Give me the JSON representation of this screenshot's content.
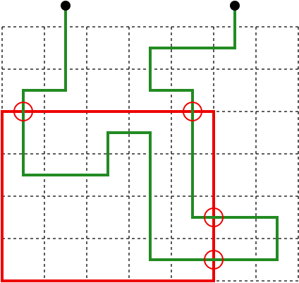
{
  "colors": {
    "background": "#ffffff",
    "grid_line": "#000000",
    "path_line": "#228b22",
    "region_border": "#ee0000",
    "intersection_marker": "#ee0000",
    "endpoint_dot": "#000000"
  },
  "grid": {
    "columns": 7,
    "rows": 6,
    "line_style": "dashed"
  },
  "paths": [
    {
      "name": "left-path",
      "start_endpoint": "left-start-dot",
      "nodes": [
        [
          1.5,
          -0.5
        ],
        [
          1.5,
          1.5
        ],
        [
          0.5,
          1.5
        ],
        [
          0.5,
          3.5
        ],
        [
          2.5,
          3.5
        ],
        [
          2.5,
          2.5
        ],
        [
          3.5,
          2.5
        ],
        [
          3.5,
          5.5
        ],
        [
          6.5,
          5.5
        ],
        [
          6.5,
          4.5
        ],
        [
          4.5,
          4.5
        ],
        [
          4.5,
          1.5
        ],
        [
          3.5,
          1.5
        ],
        [
          3.5,
          0.5
        ],
        [
          5.5,
          0.5
        ],
        [
          5.5,
          -0.5
        ]
      ]
    }
  ],
  "endpoints": [
    {
      "name": "left-start-dot",
      "cell": [
        1.5,
        -0.5
      ]
    },
    {
      "name": "right-start-dot",
      "cell": [
        5.5,
        -0.5
      ]
    }
  ],
  "region": {
    "name": "red-region-border",
    "cells_from": [
      0,
      2
    ],
    "cells_to": [
      5,
      6
    ]
  },
  "intersections": [
    {
      "name": "crossing-marker-top-left",
      "cell": [
        0.5,
        2
      ]
    },
    {
      "name": "crossing-marker-top-right",
      "cell": [
        4.5,
        2
      ]
    },
    {
      "name": "crossing-marker-right-upper",
      "cell": [
        5,
        4.5
      ]
    },
    {
      "name": "crossing-marker-right-lower",
      "cell": [
        5,
        5.5
      ]
    }
  ]
}
